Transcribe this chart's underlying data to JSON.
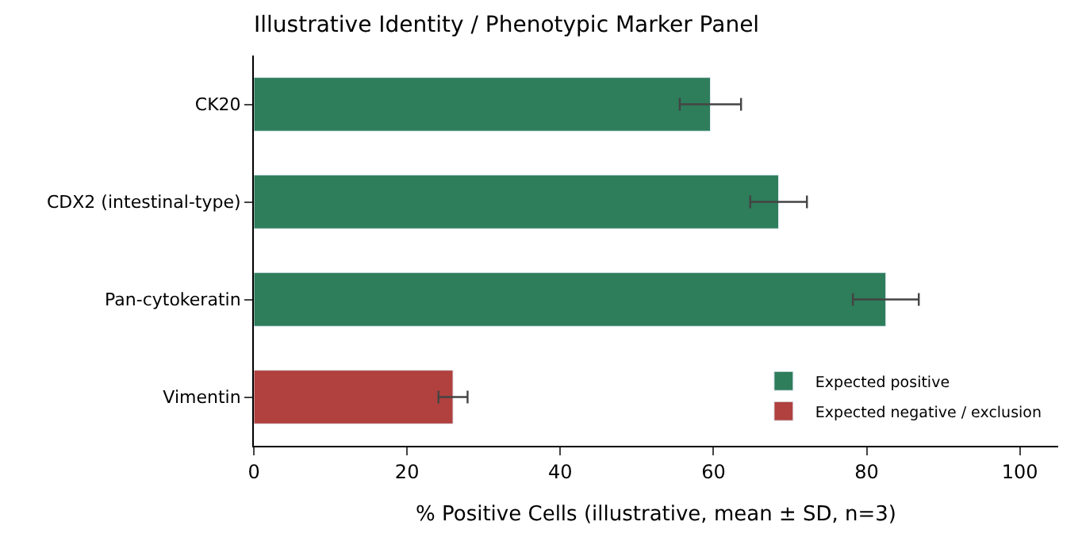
{
  "chart_data": {
    "type": "bar",
    "orientation": "horizontal",
    "title": "Illustrative Identity / Phenotypic Marker Panel",
    "xlabel": "% Positive Cells (illustrative, mean ± SD, n=3)",
    "categories": [
      "CK20",
      "CDX2 (intestinal-type)",
      "Pan-cytokeratin",
      "Vimentin"
    ],
    "series": [
      {
        "name": "Expected positive",
        "color": "#2e7d5b",
        "values": [
          59.6,
          68.5,
          82.5,
          null
        ],
        "errors": [
          4.0,
          3.7,
          4.3,
          null
        ]
      },
      {
        "name": "Expected negative / exclusion",
        "color": "#b0413e",
        "values": [
          null,
          null,
          null,
          26.0
        ],
        "errors": [
          null,
          null,
          null,
          1.9
        ]
      }
    ],
    "xlim": [
      0,
      105
    ],
    "xticks": [
      0,
      20,
      40,
      60,
      80,
      100
    ],
    "legend": "bottom right"
  }
}
